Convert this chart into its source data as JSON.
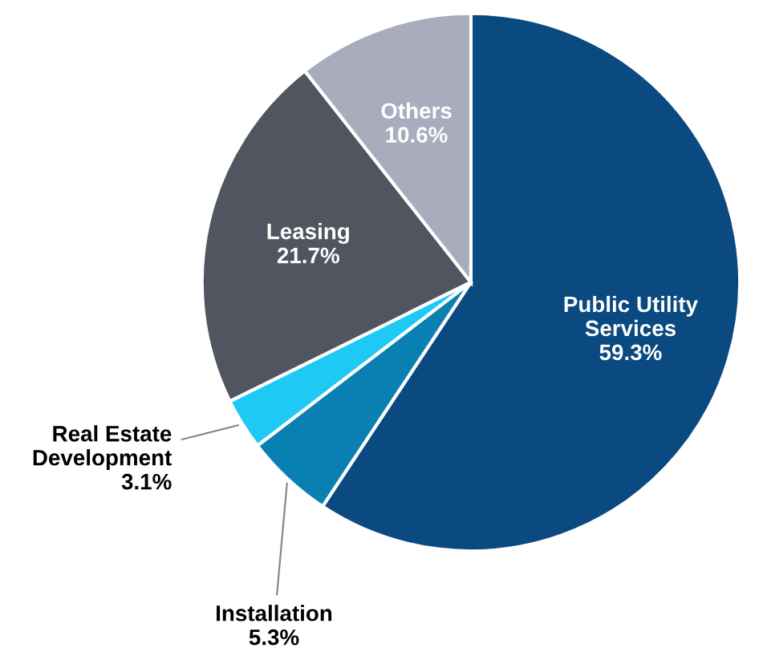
{
  "chart_data": {
    "type": "pie",
    "categories": [
      "Public Utility\nServices",
      "Installation",
      "Real Estate\nDevelopment",
      "Leasing",
      "Others"
    ],
    "values": [
      59.3,
      5.3,
      3.1,
      21.7,
      10.6
    ],
    "colors": [
      "#0b4a80",
      "#0a80b2",
      "#1ec9f5",
      "#50555f",
      "#a8acbd"
    ],
    "value_labels": [
      "59.3%",
      "5.3%",
      "3.1%",
      "21.7%",
      "10.6%"
    ]
  }
}
